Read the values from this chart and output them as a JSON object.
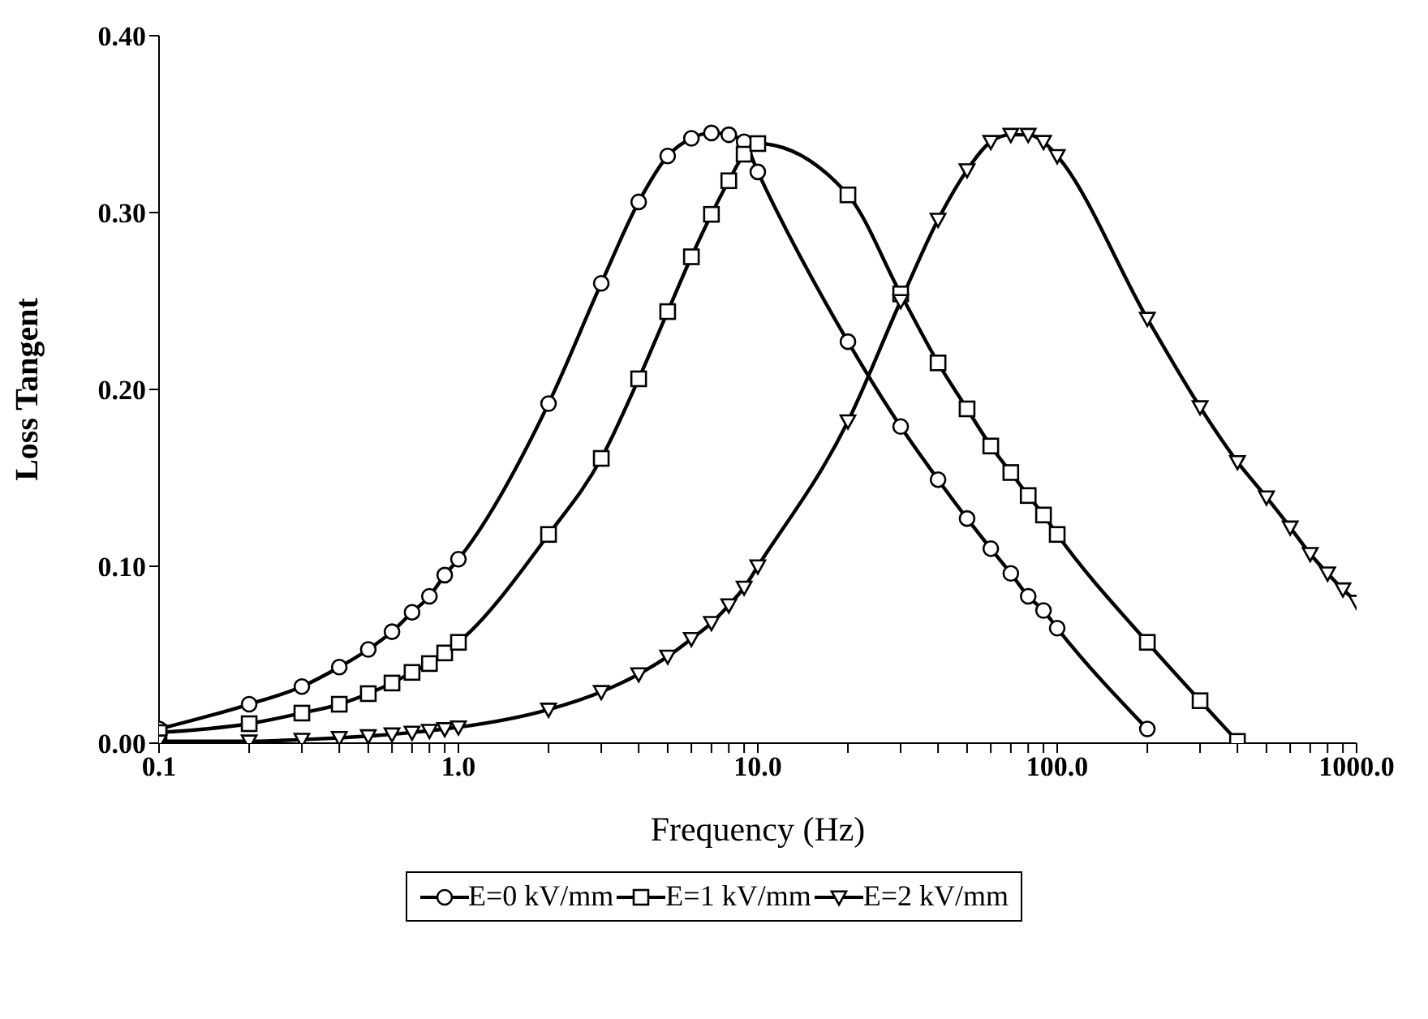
{
  "chart_data": {
    "type": "line",
    "xlabel": "Frequency (Hz)",
    "ylabel": "Loss Tangent",
    "log": "x",
    "legend": "bottom",
    "xlim": [
      0.1,
      1000
    ],
    "ylim": [
      0,
      0.4
    ],
    "xticks": [
      {
        "value": 0.1,
        "label": "0.1"
      },
      {
        "value": 0.2,
        "label": null
      },
      {
        "value": 0.3,
        "label": null
      },
      {
        "value": 0.4,
        "label": null
      },
      {
        "value": 0.5,
        "label": null
      },
      {
        "value": 0.6,
        "label": null
      },
      {
        "value": 0.7,
        "label": null
      },
      {
        "value": 0.8,
        "label": null
      },
      {
        "value": 0.9,
        "label": null
      },
      {
        "value": 1,
        "label": "1.0"
      },
      {
        "value": 2,
        "label": null
      },
      {
        "value": 3,
        "label": null
      },
      {
        "value": 4,
        "label": null
      },
      {
        "value": 5,
        "label": null
      },
      {
        "value": 6,
        "label": null
      },
      {
        "value": 7,
        "label": null
      },
      {
        "value": 8,
        "label": null
      },
      {
        "value": 9,
        "label": null
      },
      {
        "value": 10,
        "label": "10.0"
      },
      {
        "value": 20,
        "label": null
      },
      {
        "value": 30,
        "label": null
      },
      {
        "value": 40,
        "label": null
      },
      {
        "value": 50,
        "label": null
      },
      {
        "value": 60,
        "label": null
      },
      {
        "value": 70,
        "label": null
      },
      {
        "value": 80,
        "label": null
      },
      {
        "value": 90,
        "label": null
      },
      {
        "value": 100,
        "label": "100.0"
      },
      {
        "value": 200,
        "label": null
      },
      {
        "value": 300,
        "label": null
      },
      {
        "value": 400,
        "label": null
      },
      {
        "value": 500,
        "label": null
      },
      {
        "value": 600,
        "label": null
      },
      {
        "value": 700,
        "label": null
      },
      {
        "value": 800,
        "label": null
      },
      {
        "value": 900,
        "label": null
      },
      {
        "value": 1000,
        "label": "1000.0"
      }
    ],
    "yticks": [
      {
        "value": 0,
        "label": "0.00"
      },
      {
        "value": 0.1,
        "label": "0.10"
      },
      {
        "value": 0.2,
        "label": "0.20"
      },
      {
        "value": 0.3,
        "label": "0.30"
      },
      {
        "value": 0.4,
        "label": "0.40"
      }
    ],
    "series": [
      {
        "name": "E=0 kV/mm",
        "color": "#000000",
        "marker": "circle",
        "x": [
          0.1,
          0.2,
          0.3,
          0.4,
          0.5,
          0.6,
          0.7,
          0.8,
          0.9,
          1,
          2,
          3,
          4,
          5,
          6,
          7,
          8,
          9,
          10,
          20,
          30,
          40,
          50,
          60,
          70,
          80,
          90,
          100,
          200
        ],
        "values": [
          0.008,
          0.022,
          0.032,
          0.043,
          0.053,
          0.063,
          0.074,
          0.083,
          0.095,
          0.104,
          0.192,
          0.26,
          0.306,
          0.332,
          0.342,
          0.345,
          0.344,
          0.34,
          0.323,
          0.227,
          0.179,
          0.149,
          0.127,
          0.11,
          0.096,
          0.083,
          0.075,
          0.065,
          0.008
        ]
      },
      {
        "name": "E=1 kV/mm",
        "color": "#000000",
        "marker": "square",
        "x": [
          0.1,
          0.2,
          0.3,
          0.4,
          0.5,
          0.6,
          0.7,
          0.8,
          0.9,
          1,
          2,
          3,
          4,
          5,
          6,
          7,
          8,
          9,
          10,
          20,
          30,
          40,
          50,
          60,
          70,
          80,
          90,
          100,
          200,
          300,
          400
        ],
        "values": [
          0.006,
          0.011,
          0.017,
          0.022,
          0.028,
          0.034,
          0.04,
          0.045,
          0.051,
          0.057,
          0.118,
          0.161,
          0.206,
          0.244,
          0.275,
          0.299,
          0.318,
          0.333,
          0.339,
          0.31,
          0.254,
          0.215,
          0.189,
          0.168,
          0.153,
          0.14,
          0.129,
          0.118,
          0.057,
          0.024,
          0.001
        ]
      },
      {
        "name": "E=2 kV/mm",
        "color": "#000000",
        "marker": "triangle",
        "x": [
          0.1,
          0.2,
          0.3,
          0.4,
          0.5,
          0.6,
          0.7,
          0.8,
          0.9,
          1,
          2,
          3,
          4,
          5,
          6,
          7,
          8,
          9,
          10,
          20,
          30,
          40,
          50,
          60,
          70,
          80,
          90,
          100,
          200,
          300,
          400,
          500,
          600,
          700,
          800,
          900,
          1000
        ],
        "values": [
          0.001,
          0.001,
          0.002,
          0.003,
          0.004,
          0.005,
          0.006,
          0.007,
          0.008,
          0.009,
          0.019,
          0.029,
          0.039,
          0.049,
          0.059,
          0.068,
          0.078,
          0.088,
          0.1,
          0.182,
          0.25,
          0.296,
          0.324,
          0.34,
          0.344,
          0.344,
          0.34,
          0.332,
          0.24,
          0.19,
          0.159,
          0.139,
          0.122,
          0.107,
          0.096,
          0.087,
          0.08
        ]
      }
    ]
  }
}
